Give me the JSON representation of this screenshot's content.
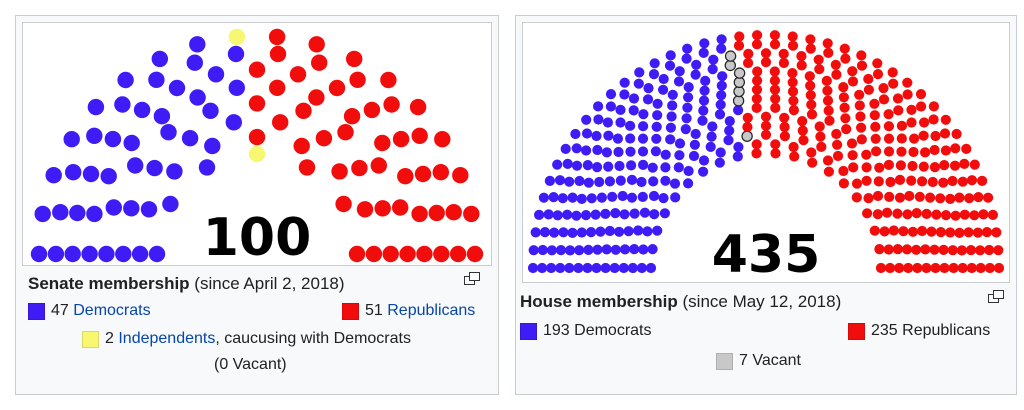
{
  "colors": {
    "democrat": "#3f1cf5",
    "republican": "#f20d0d",
    "independent": "#f7f771",
    "vacant": "#c8c8c8",
    "link": "#0645ad"
  },
  "senate": {
    "title": "Senate membership",
    "subtitle": "(since April 2, 2018)",
    "legend": {
      "dem_count": "47",
      "dem_label": "Democrats",
      "rep_count": "51",
      "rep_label": "Republicans",
      "ind_count": "2",
      "ind_label": "Independents",
      "ind_suffix": ", caucusing with Democrats"
    },
    "vacant": "(0 Vacant)"
  },
  "house": {
    "title": "House membership",
    "subtitle": "(since May 12, 2018)",
    "legend": {
      "dem": "193 Democrats",
      "rep": "235 Republicans",
      "vacant": "7 Vacant"
    }
  },
  "chart_data": [
    {
      "type": "parliament",
      "total": "100",
      "series": [
        {
          "name": "Democrats",
          "value": 47,
          "color": "#3f1cf5"
        },
        {
          "name": "Independents",
          "value": 2,
          "color": "#f7f771"
        },
        {
          "name": "Vacant",
          "value": 0,
          "color": "#c8c8c8"
        },
        {
          "name": "Republicans",
          "value": 51,
          "color": "#f20d0d"
        }
      ]
    },
    {
      "type": "parliament",
      "total": "435",
      "series": [
        {
          "name": "Democrats",
          "value": 193,
          "color": "#3f1cf5"
        },
        {
          "name": "Vacant",
          "value": 7,
          "color": "#c8c8c8"
        },
        {
          "name": "Republicans",
          "value": 235,
          "color": "#f20d0d"
        }
      ]
    }
  ]
}
